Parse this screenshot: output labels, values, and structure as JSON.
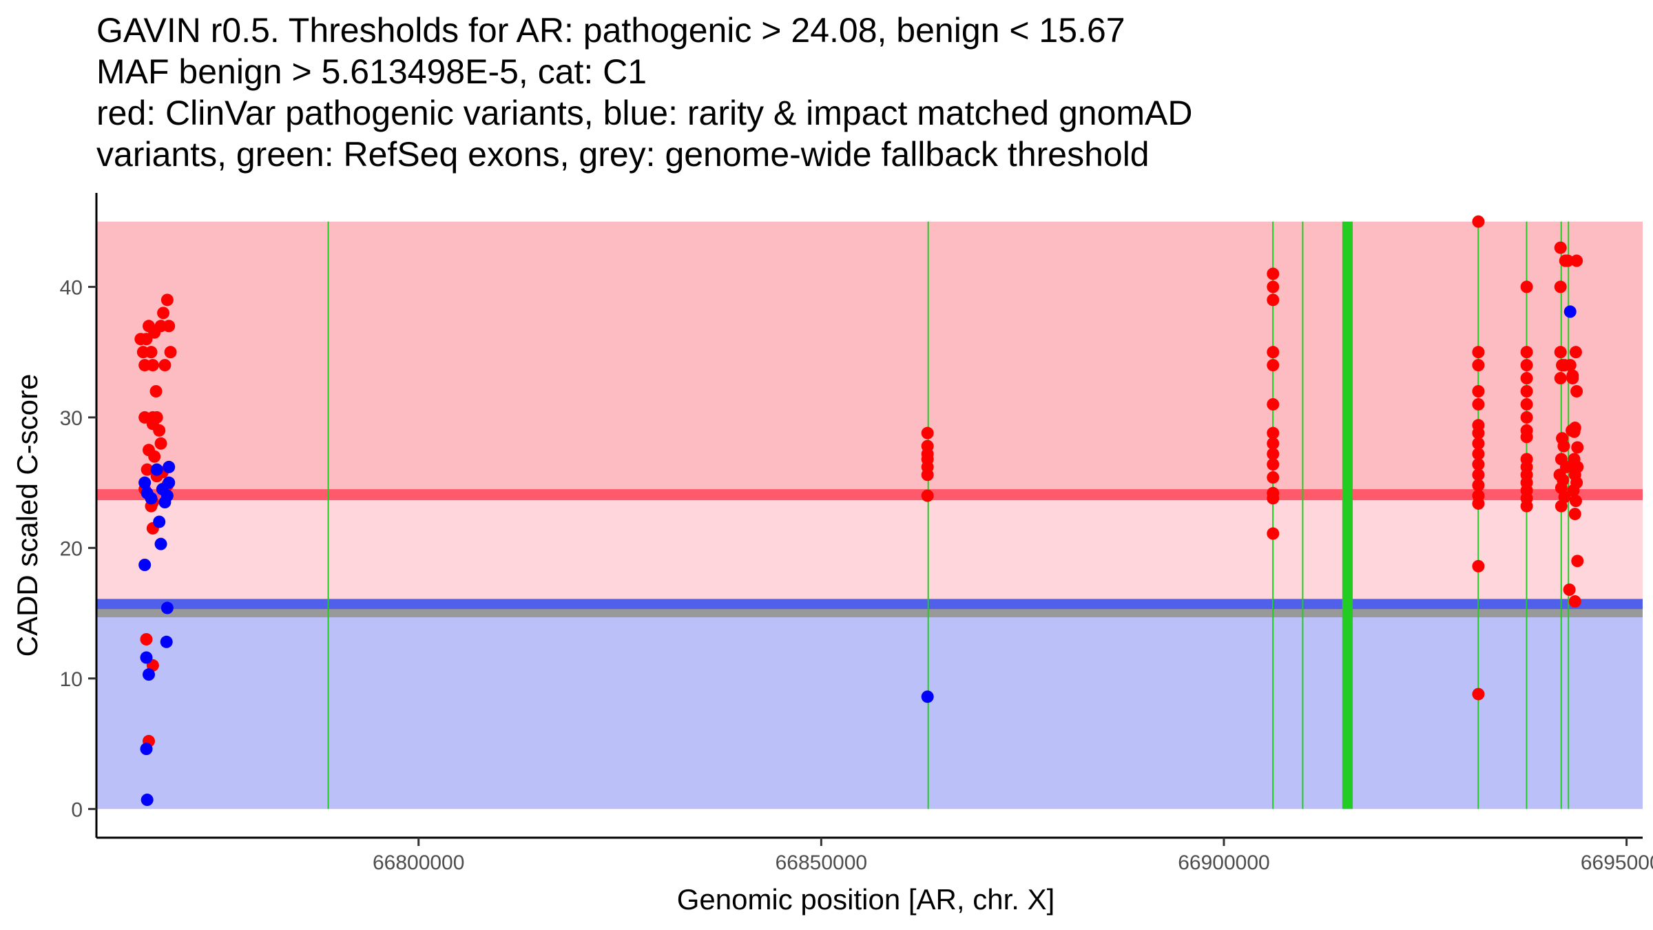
{
  "chart_data": {
    "type": "scatter",
    "title_lines": [
      "GAVIN r0.5. Thresholds for AR: pathogenic > 24.08, benign < 15.67",
      "MAF benign > 5.613498E-5, cat: C1",
      "red: ClinVar pathogenic variants, blue: rarity & impact matched gnomAD",
      "variants, green: RefSeq exons, grey: genome-wide fallback threshold"
    ],
    "xlabel": "Genomic position [AR, chr. X]",
    "ylabel": "CADD scaled C-score",
    "xlim": [
      66760000,
      66952000
    ],
    "ylim": [
      -2.2,
      47.2
    ],
    "x_ticks": [
      66800000,
      66850000,
      66900000,
      66950000
    ],
    "x_tick_labels": [
      "66800000",
      "66850000",
      "66900000",
      "66950000"
    ],
    "y_ticks": [
      0,
      10,
      20,
      30,
      40
    ],
    "y_tick_labels": [
      "0",
      "10",
      "20",
      "30",
      "40"
    ],
    "thresholds": {
      "pathogenic": 24.08,
      "benign": 15.67,
      "genome_wide_fallback": 15.0,
      "score_max": 45
    },
    "colors": {
      "pathogenic_zone": "#fdbcc2",
      "intermediate_zone": "#fed6dc",
      "benign_zone": "#bcc0f9",
      "pathogenic_line": "#ff5a6b",
      "benign_line": "#5060ea",
      "fallback_line": "#999999",
      "exon": "#22cc22",
      "pathogenic_point": "#ff0000",
      "benign_point": "#0000ff"
    },
    "exons": [
      {
        "start": 66788700,
        "end": 66788800
      },
      {
        "start": 66863200,
        "end": 66863300
      },
      {
        "start": 66906000,
        "end": 66906150
      },
      {
        "start": 66909700,
        "end": 66909850
      },
      {
        "start": 66914700,
        "end": 66916000
      },
      {
        "start": 66931500,
        "end": 66931650
      },
      {
        "start": 66937500,
        "end": 66937650
      },
      {
        "start": 66941800,
        "end": 66941950
      },
      {
        "start": 66942700,
        "end": 66942850
      }
    ],
    "series": [
      {
        "name": "ClinVar pathogenic variants",
        "color": "#ff0000",
        "points": [
          [
            66765500,
            36
          ],
          [
            66765800,
            35
          ],
          [
            66766000,
            34
          ],
          [
            66766200,
            36
          ],
          [
            66766500,
            37
          ],
          [
            66766800,
            35
          ],
          [
            66767000,
            34
          ],
          [
            66767200,
            36.5
          ],
          [
            66767400,
            32
          ],
          [
            66767500,
            30
          ],
          [
            66767000,
            29.5
          ],
          [
            66767800,
            29
          ],
          [
            66766500,
            27.5
          ],
          [
            66767200,
            27
          ],
          [
            66768000,
            28
          ],
          [
            66766300,
            26
          ],
          [
            66767500,
            25.5
          ],
          [
            66768200,
            25.8
          ],
          [
            66766000,
            24.5
          ],
          [
            66767000,
            23.5
          ],
          [
            66766800,
            23.2
          ],
          [
            66767000,
            21.5
          ],
          [
            66768000,
            37
          ],
          [
            66768300,
            38
          ],
          [
            66768800,
            39
          ],
          [
            66769000,
            37
          ],
          [
            66769200,
            35
          ],
          [
            66768500,
            34
          ],
          [
            66767000,
            30
          ],
          [
            66768800,
            24.8
          ],
          [
            66766200,
            13
          ],
          [
            66767000,
            11
          ],
          [
            66766500,
            5.2
          ],
          [
            66766000,
            30
          ],
          [
            66863200,
            28.8
          ],
          [
            66863200,
            27.8
          ],
          [
            66863200,
            27.2
          ],
          [
            66863200,
            26.8
          ],
          [
            66863200,
            26.2
          ],
          [
            66863200,
            25.6
          ],
          [
            66863200,
            24
          ],
          [
            66906100,
            41
          ],
          [
            66906100,
            40
          ],
          [
            66906100,
            39
          ],
          [
            66906100,
            35
          ],
          [
            66906100,
            34
          ],
          [
            66906100,
            31
          ],
          [
            66906100,
            28.8
          ],
          [
            66906100,
            28
          ],
          [
            66906100,
            27.2
          ],
          [
            66906100,
            26.4
          ],
          [
            66906100,
            25.4
          ],
          [
            66906100,
            24.2
          ],
          [
            66906100,
            23.8
          ],
          [
            66906100,
            21.1
          ],
          [
            66931600,
            45
          ],
          [
            66931600,
            35
          ],
          [
            66931600,
            34
          ],
          [
            66931600,
            32
          ],
          [
            66931600,
            31
          ],
          [
            66931600,
            29.4
          ],
          [
            66931600,
            28.8
          ],
          [
            66931600,
            28
          ],
          [
            66931600,
            27.2
          ],
          [
            66931600,
            26.4
          ],
          [
            66931600,
            25.6
          ],
          [
            66931600,
            24.8
          ],
          [
            66931600,
            24
          ],
          [
            66931600,
            23.4
          ],
          [
            66931600,
            18.6
          ],
          [
            66931600,
            8.8
          ],
          [
            66937600,
            40
          ],
          [
            66937600,
            35
          ],
          [
            66937600,
            34
          ],
          [
            66937600,
            33
          ],
          [
            66937600,
            32
          ],
          [
            66937600,
            31
          ],
          [
            66937600,
            30
          ],
          [
            66937600,
            29
          ],
          [
            66937600,
            28.5
          ],
          [
            66937600,
            26.8
          ],
          [
            66937600,
            26.2
          ],
          [
            66937600,
            25.6
          ],
          [
            66937600,
            25
          ],
          [
            66937600,
            24.4
          ],
          [
            66937600,
            23.8
          ],
          [
            66937600,
            23.2
          ],
          [
            66941800,
            43
          ],
          [
            66941800,
            40
          ],
          [
            66941800,
            35
          ],
          [
            66942000,
            34
          ],
          [
            66941800,
            33
          ],
          [
            66942300,
            34
          ],
          [
            66942000,
            28.4
          ],
          [
            66942200,
            27.8
          ],
          [
            66941900,
            26.8
          ],
          [
            66942500,
            26.2
          ],
          [
            66941700,
            25.6
          ],
          [
            66942100,
            25.2
          ],
          [
            66941900,
            24.6
          ],
          [
            66942300,
            23.9
          ],
          [
            66941900,
            23.2
          ],
          [
            66942400,
            42
          ],
          [
            66942700,
            42
          ],
          [
            66943000,
            34
          ],
          [
            66943300,
            33
          ],
          [
            66943700,
            35
          ],
          [
            66943800,
            32
          ],
          [
            66943600,
            29.2
          ],
          [
            66943500,
            28.9
          ],
          [
            66943900,
            27.7
          ],
          [
            66943500,
            26.8
          ],
          [
            66943900,
            26.2
          ],
          [
            66943600,
            25.6
          ],
          [
            66943800,
            25
          ],
          [
            66943400,
            24.4
          ],
          [
            66943700,
            23.6
          ],
          [
            66943600,
            22.6
          ],
          [
            66943900,
            19
          ],
          [
            66942900,
            16.8
          ],
          [
            66943600,
            15.9
          ],
          [
            66943200,
            29
          ],
          [
            66943300,
            33.2
          ],
          [
            66943800,
            42
          ]
        ]
      },
      {
        "name": "rarity & impact matched gnomAD variants",
        "color": "#0000ff",
        "points": [
          [
            66766000,
            25
          ],
          [
            66766300,
            24.2
          ],
          [
            66766000,
            18.7
          ],
          [
            66766200,
            11.6
          ],
          [
            66766500,
            10.3
          ],
          [
            66766200,
            4.6
          ],
          [
            66766300,
            0.7
          ],
          [
            66767500,
            26
          ],
          [
            66768200,
            24.5
          ],
          [
            66768500,
            23.5
          ],
          [
            66767800,
            22
          ],
          [
            66768000,
            20.3
          ],
          [
            66768800,
            15.4
          ],
          [
            66768700,
            12.8
          ],
          [
            66769000,
            26.2
          ],
          [
            66769000,
            25
          ],
          [
            66768800,
            24
          ],
          [
            66766800,
            23.8
          ],
          [
            66863200,
            8.6
          ],
          [
            66943000,
            38.1
          ]
        ]
      }
    ]
  }
}
